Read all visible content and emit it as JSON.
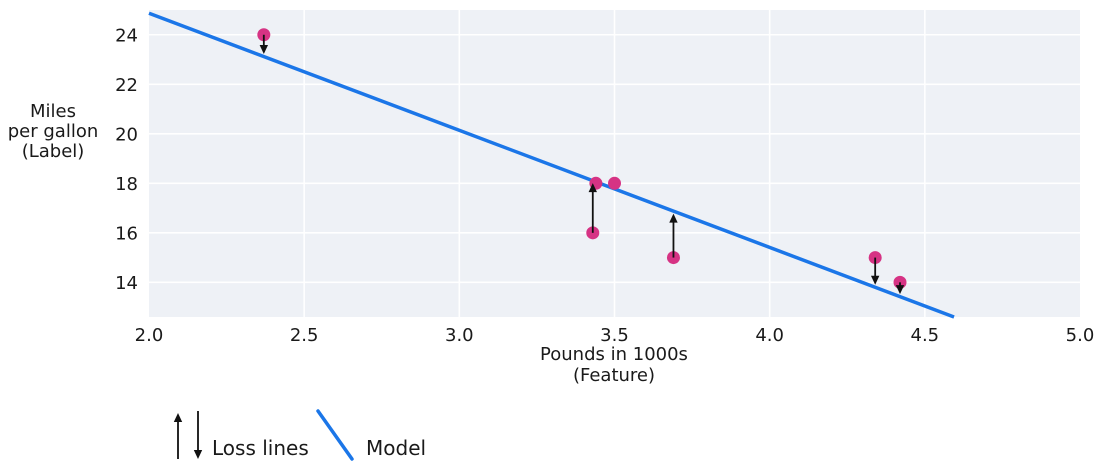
{
  "chart_data": {
    "type": "scatter",
    "title": "",
    "xlabel_lines": [
      "Pounds in 1000s",
      "(Feature)"
    ],
    "ylabel_lines": [
      "Miles",
      "per gallon",
      "(Label)"
    ],
    "xlim": [
      2.0,
      5.0
    ],
    "ylim": [
      12.6,
      25.0
    ],
    "xtick_labels": [
      "2.0",
      "2.5",
      "3.0",
      "3.5",
      "4.0",
      "4.5",
      "5.0"
    ],
    "xtick_values": [
      2.0,
      2.5,
      3.0,
      3.5,
      4.0,
      4.5,
      5.0
    ],
    "ytick_labels": [
      "14",
      "16",
      "18",
      "20",
      "22",
      "24"
    ],
    "ytick_values": [
      14,
      16,
      18,
      20,
      22,
      24
    ],
    "grid": true,
    "points": [
      {
        "x": 2.37,
        "y": 24,
        "loss_arrow": "down"
      },
      {
        "x": 3.43,
        "y": 16,
        "loss_arrow": "up"
      },
      {
        "x": 3.44,
        "y": 18,
        "loss_arrow": null
      },
      {
        "x": 3.5,
        "y": 18,
        "loss_arrow": null
      },
      {
        "x": 3.69,
        "y": 15,
        "loss_arrow": "up"
      },
      {
        "x": 4.34,
        "y": 15,
        "loss_arrow": "down"
      },
      {
        "x": 4.42,
        "y": 14,
        "loss_arrow": "down"
      }
    ],
    "model_line": {
      "slope": -4.73,
      "intercept": 34.33
    },
    "legend": [
      {
        "label": "Loss lines"
      },
      {
        "label": "Model"
      }
    ],
    "colors": {
      "plot_bg": "#eef1f6",
      "grid": "#ffffff",
      "model": "#1b76e8",
      "point": "#d63384",
      "arrow": "#111111",
      "text": "#1a1a1a"
    }
  }
}
